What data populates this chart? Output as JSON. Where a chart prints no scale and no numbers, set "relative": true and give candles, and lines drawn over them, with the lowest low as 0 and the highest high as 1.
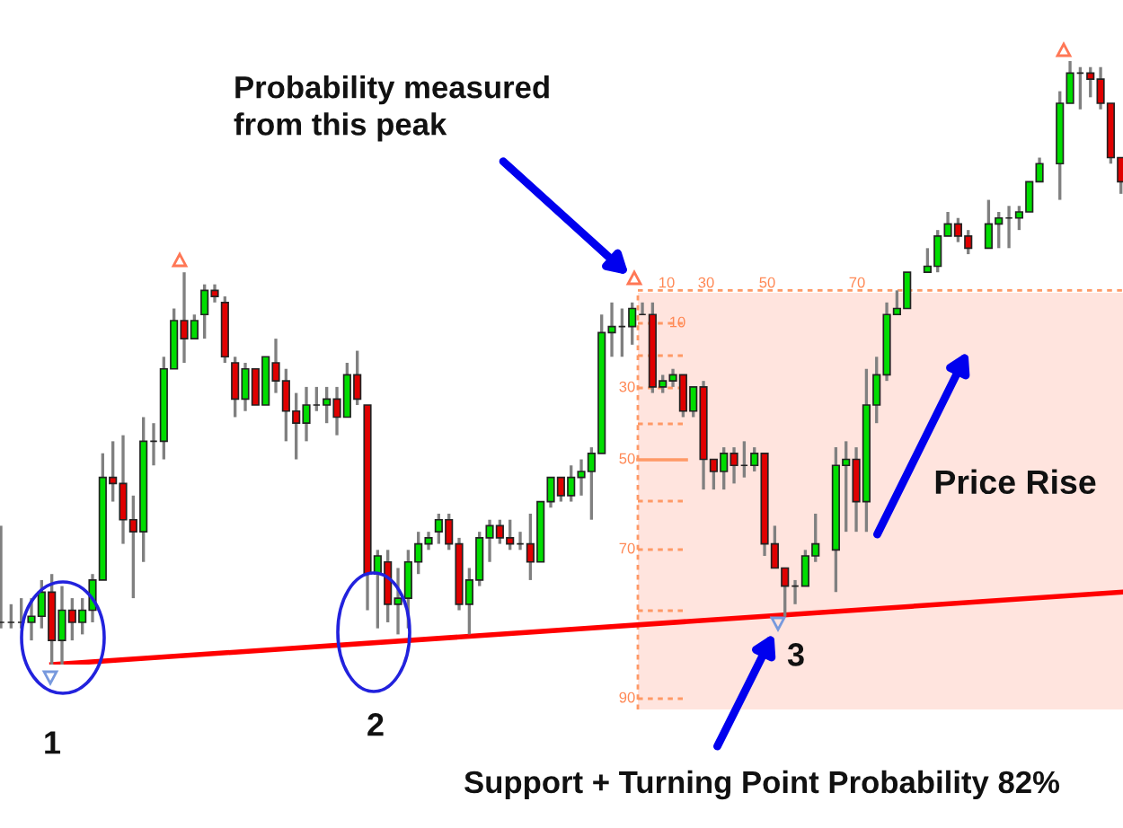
{
  "chart_data": {
    "type": "candlestick",
    "relative": true,
    "categories": [
      null,
      null,
      null,
      null,
      null,
      null,
      null,
      null,
      null,
      null,
      null,
      null,
      null,
      null,
      null,
      null,
      null,
      null,
      null,
      null,
      null,
      null,
      null,
      null,
      null,
      null,
      null,
      null,
      null,
      null,
      null,
      null,
      null,
      null,
      null,
      null,
      null,
      null,
      null,
      null,
      null,
      null,
      null,
      null,
      null,
      null,
      null,
      null,
      null,
      null,
      null,
      null,
      null,
      null,
      null,
      null,
      null,
      null,
      null,
      null,
      null,
      null,
      null,
      null,
      null,
      null,
      null,
      null,
      null,
      null,
      null,
      null,
      null,
      null,
      null,
      null,
      null,
      null,
      null,
      null,
      null,
      null,
      null,
      null,
      null,
      null,
      null,
      null,
      null,
      null,
      null,
      null,
      null,
      null,
      null,
      null,
      null,
      null,
      null,
      null,
      null,
      null,
      null,
      null,
      null,
      null,
      null,
      null,
      null,
      null,
      null
    ],
    "ohlc": [
      [
        0.07,
        0.23,
        0.06,
        0.07
      ],
      [
        0.07,
        0.1,
        0.06,
        0.07
      ],
      [
        0.07,
        0.11,
        0.06,
        0.07
      ],
      [
        0.07,
        0.11,
        0.04,
        0.08
      ],
      [
        0.08,
        0.14,
        0.06,
        0.12
      ],
      [
        0.12,
        0.15,
        0.0,
        0.04
      ],
      [
        0.04,
        0.13,
        0.0,
        0.09
      ],
      [
        0.09,
        0.11,
        0.04,
        0.07
      ],
      [
        0.07,
        0.11,
        0.05,
        0.09
      ],
      [
        0.09,
        0.15,
        0.07,
        0.14
      ],
      [
        0.14,
        0.35,
        0.14,
        0.31
      ],
      [
        0.31,
        0.37,
        0.27,
        0.3
      ],
      [
        0.3,
        0.38,
        0.2,
        0.24
      ],
      [
        0.24,
        0.28,
        0.11,
        0.22
      ],
      [
        0.22,
        0.41,
        0.17,
        0.37
      ],
      [
        0.37,
        0.4,
        0.33,
        0.37
      ],
      [
        0.37,
        0.51,
        0.34,
        0.49
      ],
      [
        0.49,
        0.59,
        0.49,
        0.57
      ],
      [
        0.57,
        0.65,
        0.5,
        0.54
      ],
      [
        0.54,
        0.58,
        0.54,
        0.57
      ],
      [
        0.58,
        0.63,
        0.54,
        0.62
      ],
      [
        0.62,
        0.63,
        0.6,
        0.61
      ],
      [
        0.6,
        0.61,
        0.5,
        0.51
      ],
      [
        0.5,
        0.51,
        0.41,
        0.44
      ],
      [
        0.44,
        0.5,
        0.42,
        0.49
      ],
      [
        0.49,
        0.49,
        0.43,
        0.43
      ],
      [
        0.43,
        0.51,
        0.43,
        0.51
      ],
      [
        0.5,
        0.54,
        0.45,
        0.47
      ],
      [
        0.47,
        0.49,
        0.37,
        0.42
      ],
      [
        0.42,
        0.45,
        0.34,
        0.4
      ],
      [
        0.4,
        0.46,
        0.37,
        0.43
      ],
      [
        0.43,
        0.46,
        0.42,
        0.43
      ],
      [
        0.43,
        0.46,
        0.4,
        0.44
      ],
      [
        0.44,
        0.46,
        0.38,
        0.41
      ],
      [
        0.41,
        0.5,
        0.41,
        0.48
      ],
      [
        0.48,
        0.52,
        0.43,
        0.44
      ],
      [
        0.43,
        0.43,
        0.09,
        0.15
      ],
      [
        0.15,
        0.19,
        0.06,
        0.18
      ],
      [
        0.17,
        0.19,
        0.07,
        0.1
      ],
      [
        0.1,
        0.16,
        0.05,
        0.11
      ],
      [
        0.11,
        0.19,
        0.06,
        0.17
      ],
      [
        0.17,
        0.22,
        0.15,
        0.2
      ],
      [
        0.2,
        0.22,
        0.19,
        0.21
      ],
      [
        0.22,
        0.25,
        0.2,
        0.24
      ],
      [
        0.24,
        0.25,
        0.19,
        0.2
      ],
      [
        0.2,
        0.21,
        0.09,
        0.1
      ],
      [
        0.1,
        0.16,
        0.05,
        0.14
      ],
      [
        0.14,
        0.22,
        0.13,
        0.21
      ],
      [
        0.21,
        0.24,
        0.17,
        0.23
      ],
      [
        0.23,
        0.24,
        0.2,
        0.21
      ],
      [
        0.21,
        0.24,
        0.19,
        0.2
      ],
      [
        0.2,
        0.22,
        0.19,
        0.2
      ],
      [
        0.2,
        0.25,
        0.14,
        0.17
      ],
      [
        0.17,
        0.27,
        0.17,
        0.27
      ],
      [
        0.27,
        0.31,
        0.26,
        0.31
      ],
      [
        0.31,
        0.31,
        0.27,
        0.28
      ],
      [
        0.28,
        0.33,
        0.27,
        0.31
      ],
      [
        0.31,
        0.34,
        0.28,
        0.32
      ],
      [
        0.32,
        0.36,
        0.24,
        0.35
      ],
      [
        0.35,
        0.58,
        0.35,
        0.55
      ],
      [
        0.55,
        0.6,
        0.51,
        0.56
      ],
      [
        0.56,
        0.59,
        0.51,
        0.56
      ],
      [
        0.56,
        0.6,
        0.53,
        0.59
      ],
      [
        0.58,
        0.6,
        0.58,
        0.58
      ],
      [
        0.58,
        0.6,
        0.45,
        0.46
      ],
      [
        0.46,
        0.48,
        0.45,
        0.47
      ],
      [
        0.47,
        0.49,
        0.46,
        0.48
      ],
      [
        0.48,
        0.48,
        0.41,
        0.42
      ],
      [
        0.42,
        0.46,
        0.41,
        0.46
      ],
      [
        0.46,
        0.47,
        0.29,
        0.34
      ],
      [
        0.34,
        0.34,
        0.29,
        0.32
      ],
      [
        0.32,
        0.36,
        0.29,
        0.35
      ],
      [
        0.35,
        0.36,
        0.3,
        0.33
      ],
      [
        0.33,
        0.37,
        0.31,
        0.33
      ],
      [
        0.33,
        0.36,
        0.32,
        0.35
      ],
      [
        0.35,
        0.35,
        0.18,
        0.2
      ],
      [
        0.2,
        0.23,
        0.16,
        0.16
      ],
      [
        0.16,
        0.16,
        0.08,
        0.13
      ],
      [
        0.13,
        0.14,
        0.1,
        0.13
      ],
      [
        0.13,
        0.19,
        0.13,
        0.18
      ],
      [
        0.18,
        0.25,
        0.17,
        0.2
      ],
      null,
      [
        0.19,
        0.36,
        0.12,
        0.33
      ],
      [
        0.33,
        0.37,
        0.22,
        0.34
      ],
      [
        0.34,
        0.36,
        0.22,
        0.27
      ],
      [
        0.27,
        0.49,
        0.22,
        0.43
      ],
      [
        0.43,
        0.51,
        0.4,
        0.48
      ],
      [
        0.48,
        0.6,
        0.47,
        0.58
      ],
      [
        0.58,
        0.62,
        0.58,
        0.59
      ],
      [
        0.59,
        0.65,
        0.59,
        0.65
      ],
      null,
      [
        0.65,
        0.69,
        0.65,
        0.66
      ],
      [
        0.66,
        0.72,
        0.65,
        0.71
      ],
      [
        0.71,
        0.75,
        0.71,
        0.73
      ],
      [
        0.73,
        0.74,
        0.7,
        0.71
      ],
      [
        0.71,
        0.72,
        0.68,
        0.69
      ],
      null,
      [
        0.69,
        0.77,
        0.69,
        0.73
      ],
      [
        0.73,
        0.75,
        0.69,
        0.74
      ],
      [
        0.74,
        0.76,
        0.69,
        0.74
      ],
      [
        0.74,
        0.76,
        0.72,
        0.75
      ],
      [
        0.75,
        0.8,
        0.75,
        0.8
      ],
      [
        0.8,
        0.84,
        0.8,
        0.83
      ],
      null,
      [
        0.83,
        0.95,
        0.77,
        0.93
      ],
      [
        0.93,
        1.0,
        0.93,
        0.98
      ],
      [
        0.98,
        0.99,
        0.92,
        0.98
      ],
      [
        0.98,
        0.99,
        0.94,
        0.97
      ],
      [
        0.97,
        0.99,
        0.92,
        0.93
      ],
      [
        0.93,
        0.93,
        0.83,
        0.84
      ],
      [
        0.84,
        0.84,
        0.78,
        0.8
      ]
    ],
    "series": [
      {
        "type": "line",
        "color": "#ff0000",
        "values": [
          null,
          null,
          null,
          null,
          null,
          0.0,
          null,
          null,
          null,
          null,
          null,
          null,
          null,
          null,
          null,
          null,
          null,
          null,
          null,
          null,
          null,
          null,
          null,
          null,
          null,
          null,
          null,
          null,
          null,
          null,
          null,
          null,
          null,
          null,
          null,
          null,
          null,
          null,
          null,
          null,
          null,
          null,
          null,
          null,
          null,
          null,
          null,
          null,
          null,
          null,
          null,
          null,
          null,
          null,
          null,
          null,
          null,
          null,
          null,
          null,
          null,
          null,
          null,
          null,
          null,
          null,
          null,
          null,
          null,
          null,
          null,
          null,
          null,
          null,
          null,
          null,
          null,
          null,
          null,
          null,
          null,
          null,
          null,
          null,
          null,
          null,
          null,
          null,
          null,
          null,
          null,
          null,
          null,
          null,
          null,
          null,
          null,
          null,
          null,
          null,
          null,
          null,
          null,
          null,
          null,
          null,
          null,
          null,
          null,
          null,
          0.12
        ]
      }
    ],
    "ref_lines": [
      {
        "axis": "y",
        "value": 0.62,
        "color": "#ff9966",
        "line_style": "dashed"
      }
    ],
    "annotations": [
      "Probability measured\nfrom this peak",
      "Price Rise",
      "Support + Turning Point Probability 82%",
      "1",
      "2",
      "3",
      "10",
      "30",
      "50",
      "70",
      "10",
      "30",
      "50",
      "70",
      "90"
    ]
  }
}
